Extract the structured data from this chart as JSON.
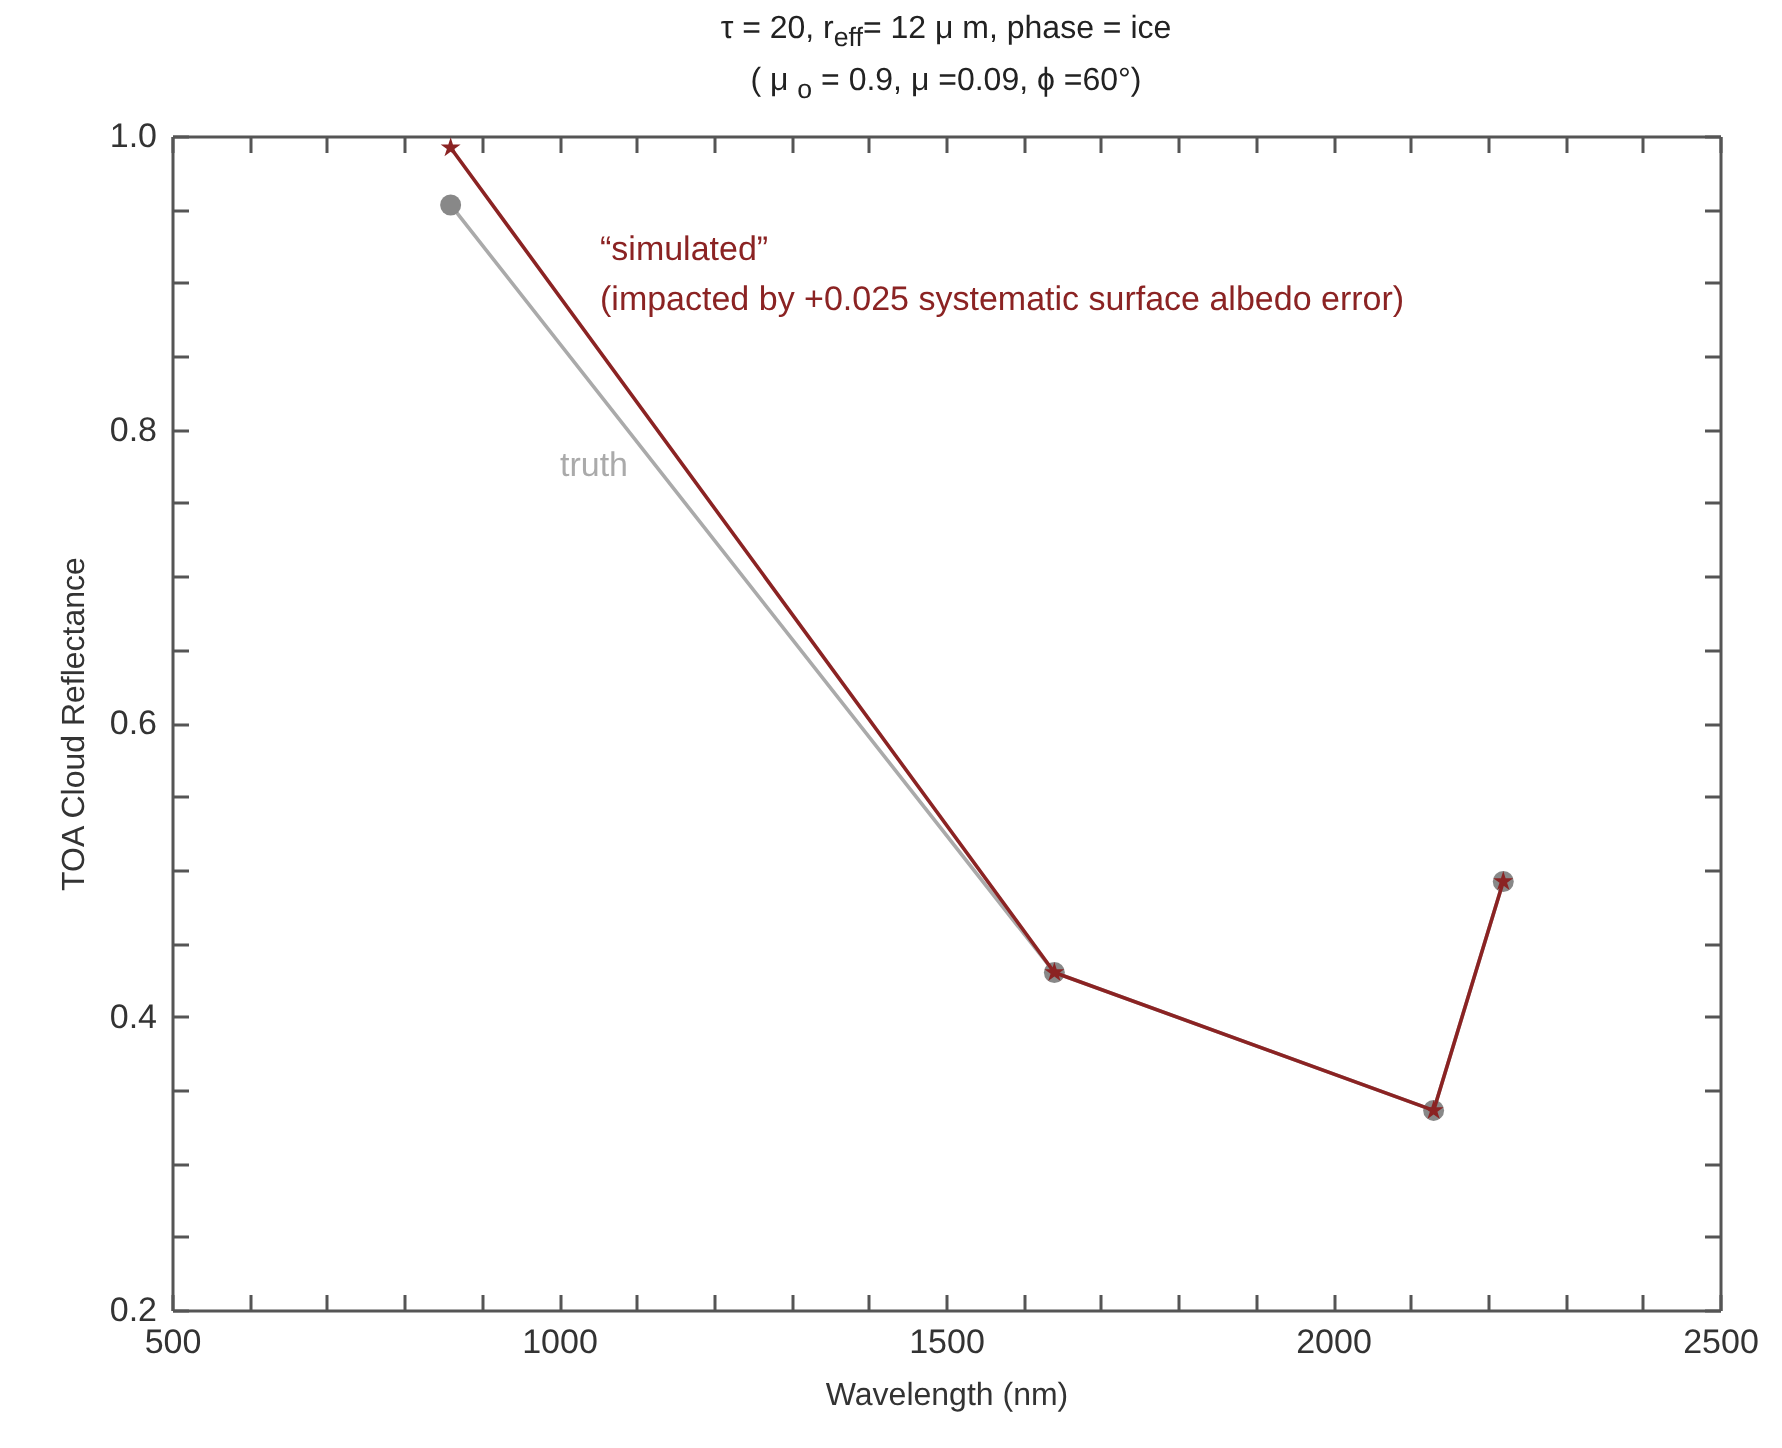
{
  "chart_data": {
    "type": "line",
    "title": "τ = 20, r$_{eff}$= 12 μ m, phase = ice",
    "subtitle": "( μ $_{o}$ = 0.9,  μ =0.09,   ϕ =60°)",
    "xlabel": "Wavelength (nm)",
    "ylabel": "TOA Cloud Reflectance",
    "annotations": [
      "(impacted by +0.025 systematic surface albedo error)"
    ],
    "x": [
      860,
      1640,
      2130,
      2220
    ],
    "series": [
      {
        "name": "truth",
        "color": "#aaaaaa",
        "marker": "circle",
        "values": [
          0.953,
          0.43,
          0.336,
          0.492
        ]
      },
      {
        "name": "“simulated”",
        "color": "#8b2323",
        "marker": "star",
        "values": [
          0.992,
          0.43,
          0.336,
          0.492
        ]
      }
    ],
    "xlim": [
      500,
      2500
    ],
    "xticks": [
      500,
      {
        "value": 600,
        "label": null
      },
      {
        "value": 700,
        "label": null
      },
      {
        "value": 800,
        "label": null
      },
      {
        "value": 900,
        "label": null
      },
      1000,
      {
        "value": 1100,
        "label": null
      },
      {
        "value": 1200,
        "label": null
      },
      {
        "value": 1300,
        "label": null
      },
      {
        "value": 1400,
        "label": null
      },
      1500,
      {
        "value": 1600,
        "label": null
      },
      {
        "value": 1700,
        "label": null
      },
      {
        "value": 1800,
        "label": null
      },
      {
        "value": 1900,
        "label": null
      },
      2000,
      {
        "value": 2100,
        "label": null
      },
      {
        "value": 2200,
        "label": null
      },
      {
        "value": 2300,
        "label": null
      },
      {
        "value": 2400,
        "label": null
      },
      2500
    ],
    "ylim": [
      0.2,
      1.0
    ],
    "yticks": [
      {
        "value": 0.2,
        "label": "0.2"
      },
      {
        "value": 0.25,
        "label": null
      },
      {
        "value": 0.3,
        "label": null
      },
      {
        "value": 0.35,
        "label": null
      },
      {
        "value": 0.4,
        "label": "0.4"
      },
      {
        "value": 0.45,
        "label": null
      },
      {
        "value": 0.5,
        "label": null
      },
      {
        "value": 0.55,
        "label": null
      },
      {
        "value": 0.6,
        "label": "0.6"
      },
      {
        "value": 0.65,
        "label": null
      },
      {
        "value": 0.7,
        "label": null
      },
      {
        "value": 0.75,
        "label": null
      },
      {
        "value": 0.8,
        "label": "0.8"
      },
      {
        "value": 0.85,
        "label": null
      },
      {
        "value": 0.9,
        "label": null
      },
      {
        "value": 0.95,
        "label": null
      },
      {
        "value": 1.0,
        "label": "1.0"
      }
    ],
    "grid": false
  }
}
